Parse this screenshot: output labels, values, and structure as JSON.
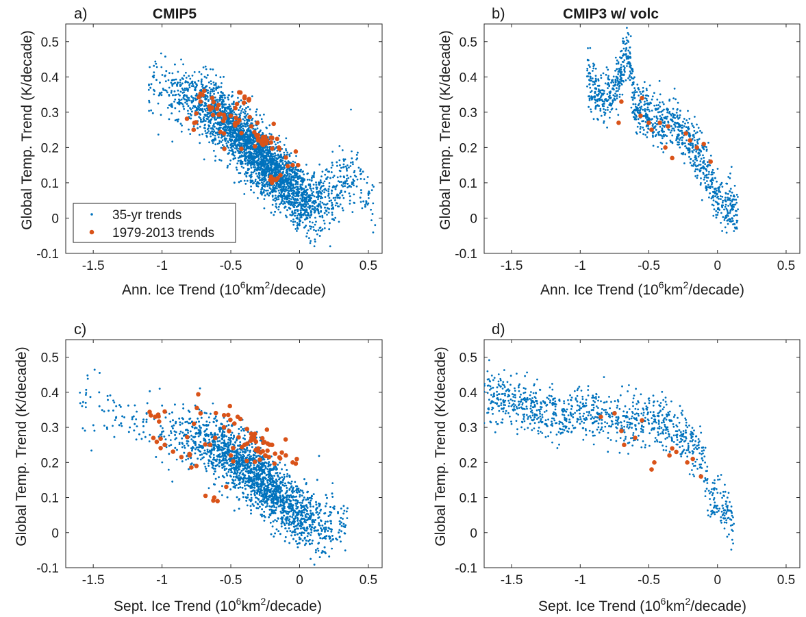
{
  "colors": {
    "trends": "#0072BD",
    "obs_period": "#D95319",
    "axis": "#262626"
  },
  "legend": {
    "placement": "bottom-left of panel a",
    "entries": [
      "35-yr trends",
      "1979-2013 trends"
    ]
  },
  "chart_data": [
    {
      "type": "scatter",
      "panel_label": "a)",
      "title": "CMIP5",
      "ylabel": "Global Temp. Trend (K/decade)",
      "xlabel": {
        "prefix": "Ann. Ice Trend (10",
        "exp1": "6",
        "middle": "km",
        "exp2": "2",
        "suffix": "/decade)"
      },
      "xlim": [
        -1.7,
        0.6
      ],
      "ylim": [
        -0.1,
        0.55
      ],
      "xticks": [
        -1.5,
        -1,
        -0.5,
        0,
        0.5
      ],
      "xtick_labels": [
        "-1.5",
        "-1",
        "-0.5",
        "0",
        "0.5"
      ],
      "yticks": [
        -0.1,
        0,
        0.1,
        0.2,
        0.3,
        0.4,
        0.5
      ],
      "ytick_labels": [
        "-0.1",
        "0",
        "0.1",
        "0.2",
        "0.3",
        "0.4",
        "0.5"
      ],
      "series": [
        {
          "name": "35-yr trends",
          "approx_count": 6000,
          "x": [
            -1.1,
            -1.0,
            -0.9,
            -0.8,
            -0.7,
            -0.6,
            -0.5,
            -0.4,
            -0.3,
            -0.2,
            -0.1,
            0.0,
            0.1,
            0.2,
            0.3,
            0.4,
            0.5,
            0.55
          ],
          "y": [
            0.38,
            0.37,
            0.35,
            0.34,
            0.32,
            0.29,
            0.26,
            0.22,
            0.18,
            0.14,
            0.1,
            0.06,
            0.04,
            0.05,
            0.1,
            0.12,
            0.06,
            0.03
          ]
        },
        {
          "name": "1979-2013 trends",
          "x": [
            -0.77,
            -0.72,
            -0.6,
            -0.55,
            -0.5,
            -0.45,
            -0.4,
            -0.35,
            -0.3,
            -0.25,
            -0.2,
            -0.15,
            -0.05
          ],
          "y": [
            0.25,
            0.33,
            0.31,
            0.24,
            0.29,
            0.27,
            0.34,
            0.26,
            0.22,
            0.23,
            0.1,
            0.2,
            0.15
          ]
        }
      ]
    },
    {
      "type": "scatter",
      "panel_label": "b)",
      "title": "CMIP3 w/ volc",
      "ylabel": "Global Temp. Trend (K/decade)",
      "xlabel": {
        "prefix": "Ann. Ice Trend (10",
        "exp1": "6",
        "middle": "km",
        "exp2": "2",
        "suffix": "/decade)"
      },
      "xlim": [
        -1.7,
        0.6
      ],
      "ylim": [
        -0.1,
        0.55
      ],
      "xticks": [
        -1.5,
        -1,
        -0.5,
        0,
        0.5
      ],
      "xtick_labels": [
        "-1.5",
        "-1",
        "-0.5",
        "0",
        "0.5"
      ],
      "yticks": [
        -0.1,
        0,
        0.1,
        0.2,
        0.3,
        0.4,
        0.5
      ],
      "ytick_labels": [
        "-0.1",
        "0",
        "0.1",
        "0.2",
        "0.3",
        "0.4",
        "0.5"
      ],
      "series": [
        {
          "name": "35-yr trends",
          "approx_count": 1400,
          "x": [
            -0.95,
            -0.85,
            -0.75,
            -0.65,
            -0.6,
            -0.5,
            -0.4,
            -0.3,
            -0.2,
            -0.1,
            0.0,
            0.15
          ],
          "y": [
            0.4,
            0.34,
            0.36,
            0.48,
            0.32,
            0.3,
            0.27,
            0.26,
            0.22,
            0.15,
            0.05,
            0.02
          ]
        },
        {
          "name": "1979-2013 trends",
          "x": [
            -0.72,
            -0.7,
            -0.56,
            -0.55,
            -0.5,
            -0.48,
            -0.42,
            -0.38,
            -0.36,
            -0.33,
            -0.23,
            -0.2,
            -0.15,
            -0.1,
            -0.05
          ],
          "y": [
            0.27,
            0.33,
            0.29,
            0.34,
            0.27,
            0.25,
            0.27,
            0.2,
            0.26,
            0.17,
            0.24,
            0.22,
            0.2,
            0.21,
            0.16
          ]
        }
      ]
    },
    {
      "type": "scatter",
      "panel_label": "c)",
      "title": "",
      "ylabel": "Global Temp. Trend (K/decade)",
      "xlabel": {
        "prefix": "Sept. Ice Trend (10",
        "exp1": "6",
        "middle": "km",
        "exp2": "2",
        "suffix": "/decade)"
      },
      "xlim": [
        -1.7,
        0.6
      ],
      "ylim": [
        -0.1,
        0.55
      ],
      "xticks": [
        -1.5,
        -1,
        -0.5,
        0,
        0.5
      ],
      "xtick_labels": [
        "-1.5",
        "-1",
        "-0.5",
        "0",
        "0.5"
      ],
      "yticks": [
        -0.1,
        0,
        0.1,
        0.2,
        0.3,
        0.4,
        0.5
      ],
      "ytick_labels": [
        "-0.1",
        "0",
        "0.1",
        "0.2",
        "0.3",
        "0.4",
        "0.5"
      ],
      "series": [
        {
          "name": "35-yr trends",
          "approx_count": 6000,
          "x": [
            -1.6,
            -1.5,
            -1.3,
            -1.1,
            -0.9,
            -0.8,
            -0.7,
            -0.6,
            -0.5,
            -0.4,
            -0.3,
            -0.2,
            -0.1,
            0.0,
            0.1,
            0.2,
            0.35
          ],
          "y": [
            0.37,
            0.37,
            0.34,
            0.31,
            0.28,
            0.27,
            0.26,
            0.24,
            0.22,
            0.19,
            0.16,
            0.12,
            0.08,
            0.05,
            0.03,
            0.02,
            0.03
          ]
        },
        {
          "name": "1979-2013 trends",
          "x": [
            -1.05,
            -0.98,
            -0.8,
            -0.75,
            -0.72,
            -0.65,
            -0.62,
            -0.55,
            -0.5,
            -0.45,
            -0.4,
            -0.35,
            -0.3,
            -0.25,
            -0.2,
            -0.1,
            -0.05
          ],
          "y": [
            0.33,
            0.25,
            0.22,
            0.19,
            0.34,
            0.25,
            0.1,
            0.3,
            0.22,
            0.33,
            0.25,
            0.27,
            0.24,
            0.22,
            0.25,
            0.22,
            0.2
          ]
        }
      ]
    },
    {
      "type": "scatter",
      "panel_label": "d)",
      "title": "",
      "ylabel": "Global Temp. Trend (K/decade)",
      "xlabel": {
        "prefix": "Sept. Ice Trend (10",
        "exp1": "6",
        "middle": "km",
        "exp2": "2",
        "suffix": "/decade)"
      },
      "xlim": [
        -1.7,
        0.6
      ],
      "ylim": [
        -0.1,
        0.55
      ],
      "xticks": [
        -1.5,
        -1,
        -0.5,
        0,
        0.5
      ],
      "xtick_labels": [
        "-1.5",
        "-1",
        "-0.5",
        "0",
        "0.5"
      ],
      "yticks": [
        -0.1,
        0,
        0.1,
        0.2,
        0.3,
        0.4,
        0.5
      ],
      "ytick_labels": [
        "-0.1",
        "0",
        "0.1",
        "0.2",
        "0.3",
        "0.4",
        "0.5"
      ],
      "series": [
        {
          "name": "35-yr trends",
          "approx_count": 1400,
          "x": [
            -1.7,
            -1.5,
            -1.3,
            -1.1,
            -0.95,
            -0.8,
            -0.6,
            -0.5,
            -0.35,
            -0.2,
            -0.1,
            -0.05,
            0.05,
            0.12
          ],
          "y": [
            0.4,
            0.38,
            0.35,
            0.33,
            0.34,
            0.33,
            0.31,
            0.33,
            0.3,
            0.25,
            0.2,
            0.1,
            0.06,
            0.03
          ]
        },
        {
          "name": "1979-2013 trends",
          "x": [
            -0.85,
            -0.75,
            -0.7,
            -0.68,
            -0.6,
            -0.55,
            -0.48,
            -0.46,
            -0.35,
            -0.33,
            -0.3,
            -0.22,
            -0.18,
            -0.12
          ],
          "y": [
            0.33,
            0.34,
            0.29,
            0.25,
            0.27,
            0.32,
            0.18,
            0.2,
            0.22,
            0.24,
            0.23,
            0.2,
            0.21,
            0.16
          ]
        }
      ]
    }
  ]
}
